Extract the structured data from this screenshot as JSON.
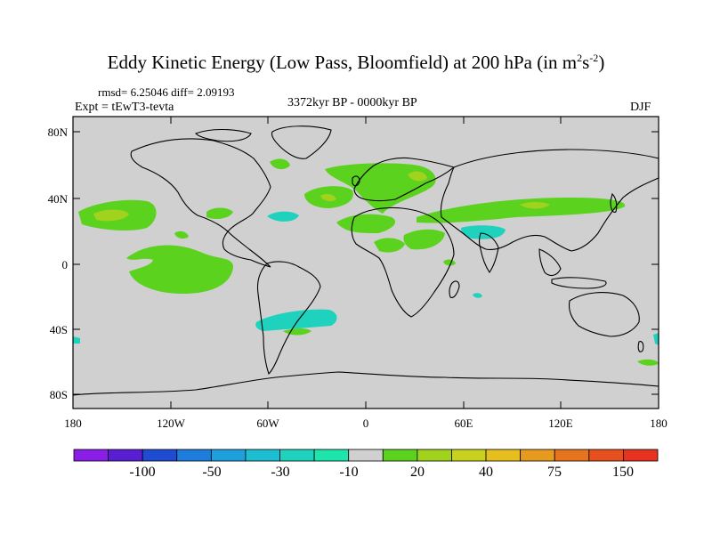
{
  "title": {
    "main": "Eddy Kinetic Energy (Low Pass, Bloomfield) at 200 hPa (in m",
    "sup1": "2",
    "mid": "s",
    "sup2": "-2",
    "end": ")"
  },
  "stats": "rmsd= 6.25046 diff= 2.09193",
  "experiment": "Expt = tEwT3-tevta",
  "period": "3372kyr BP - 0000kyr BP",
  "season": "DJF",
  "lat_labels": [
    "80N",
    "40N",
    "0",
    "40S",
    "80S"
  ],
  "lon_labels": [
    "180",
    "120W",
    "60W",
    "0",
    "60E",
    "120E",
    "180"
  ],
  "colorbar": {
    "labels": [
      "-100",
      "-50",
      "-30",
      "-10",
      "20",
      "40",
      "75",
      "150"
    ],
    "colors": [
      "#8a1ee6",
      "#5a1ed2",
      "#1e4bd2",
      "#1e7ddc",
      "#1ea0dc",
      "#1ebed2",
      "#1ed2be",
      "#1ee6aa",
      "#d0d0d0",
      "#5ad21e",
      "#a0d21e",
      "#c8d21e",
      "#e6be1e",
      "#e69b1e",
      "#e6731e",
      "#e6501e",
      "#e6321e"
    ]
  },
  "colors": {
    "land_ocean": "#d0d0d0",
    "positive": "#5ad21e",
    "positive_strong": "#a0d21e",
    "negative": "#1ed2be"
  }
}
